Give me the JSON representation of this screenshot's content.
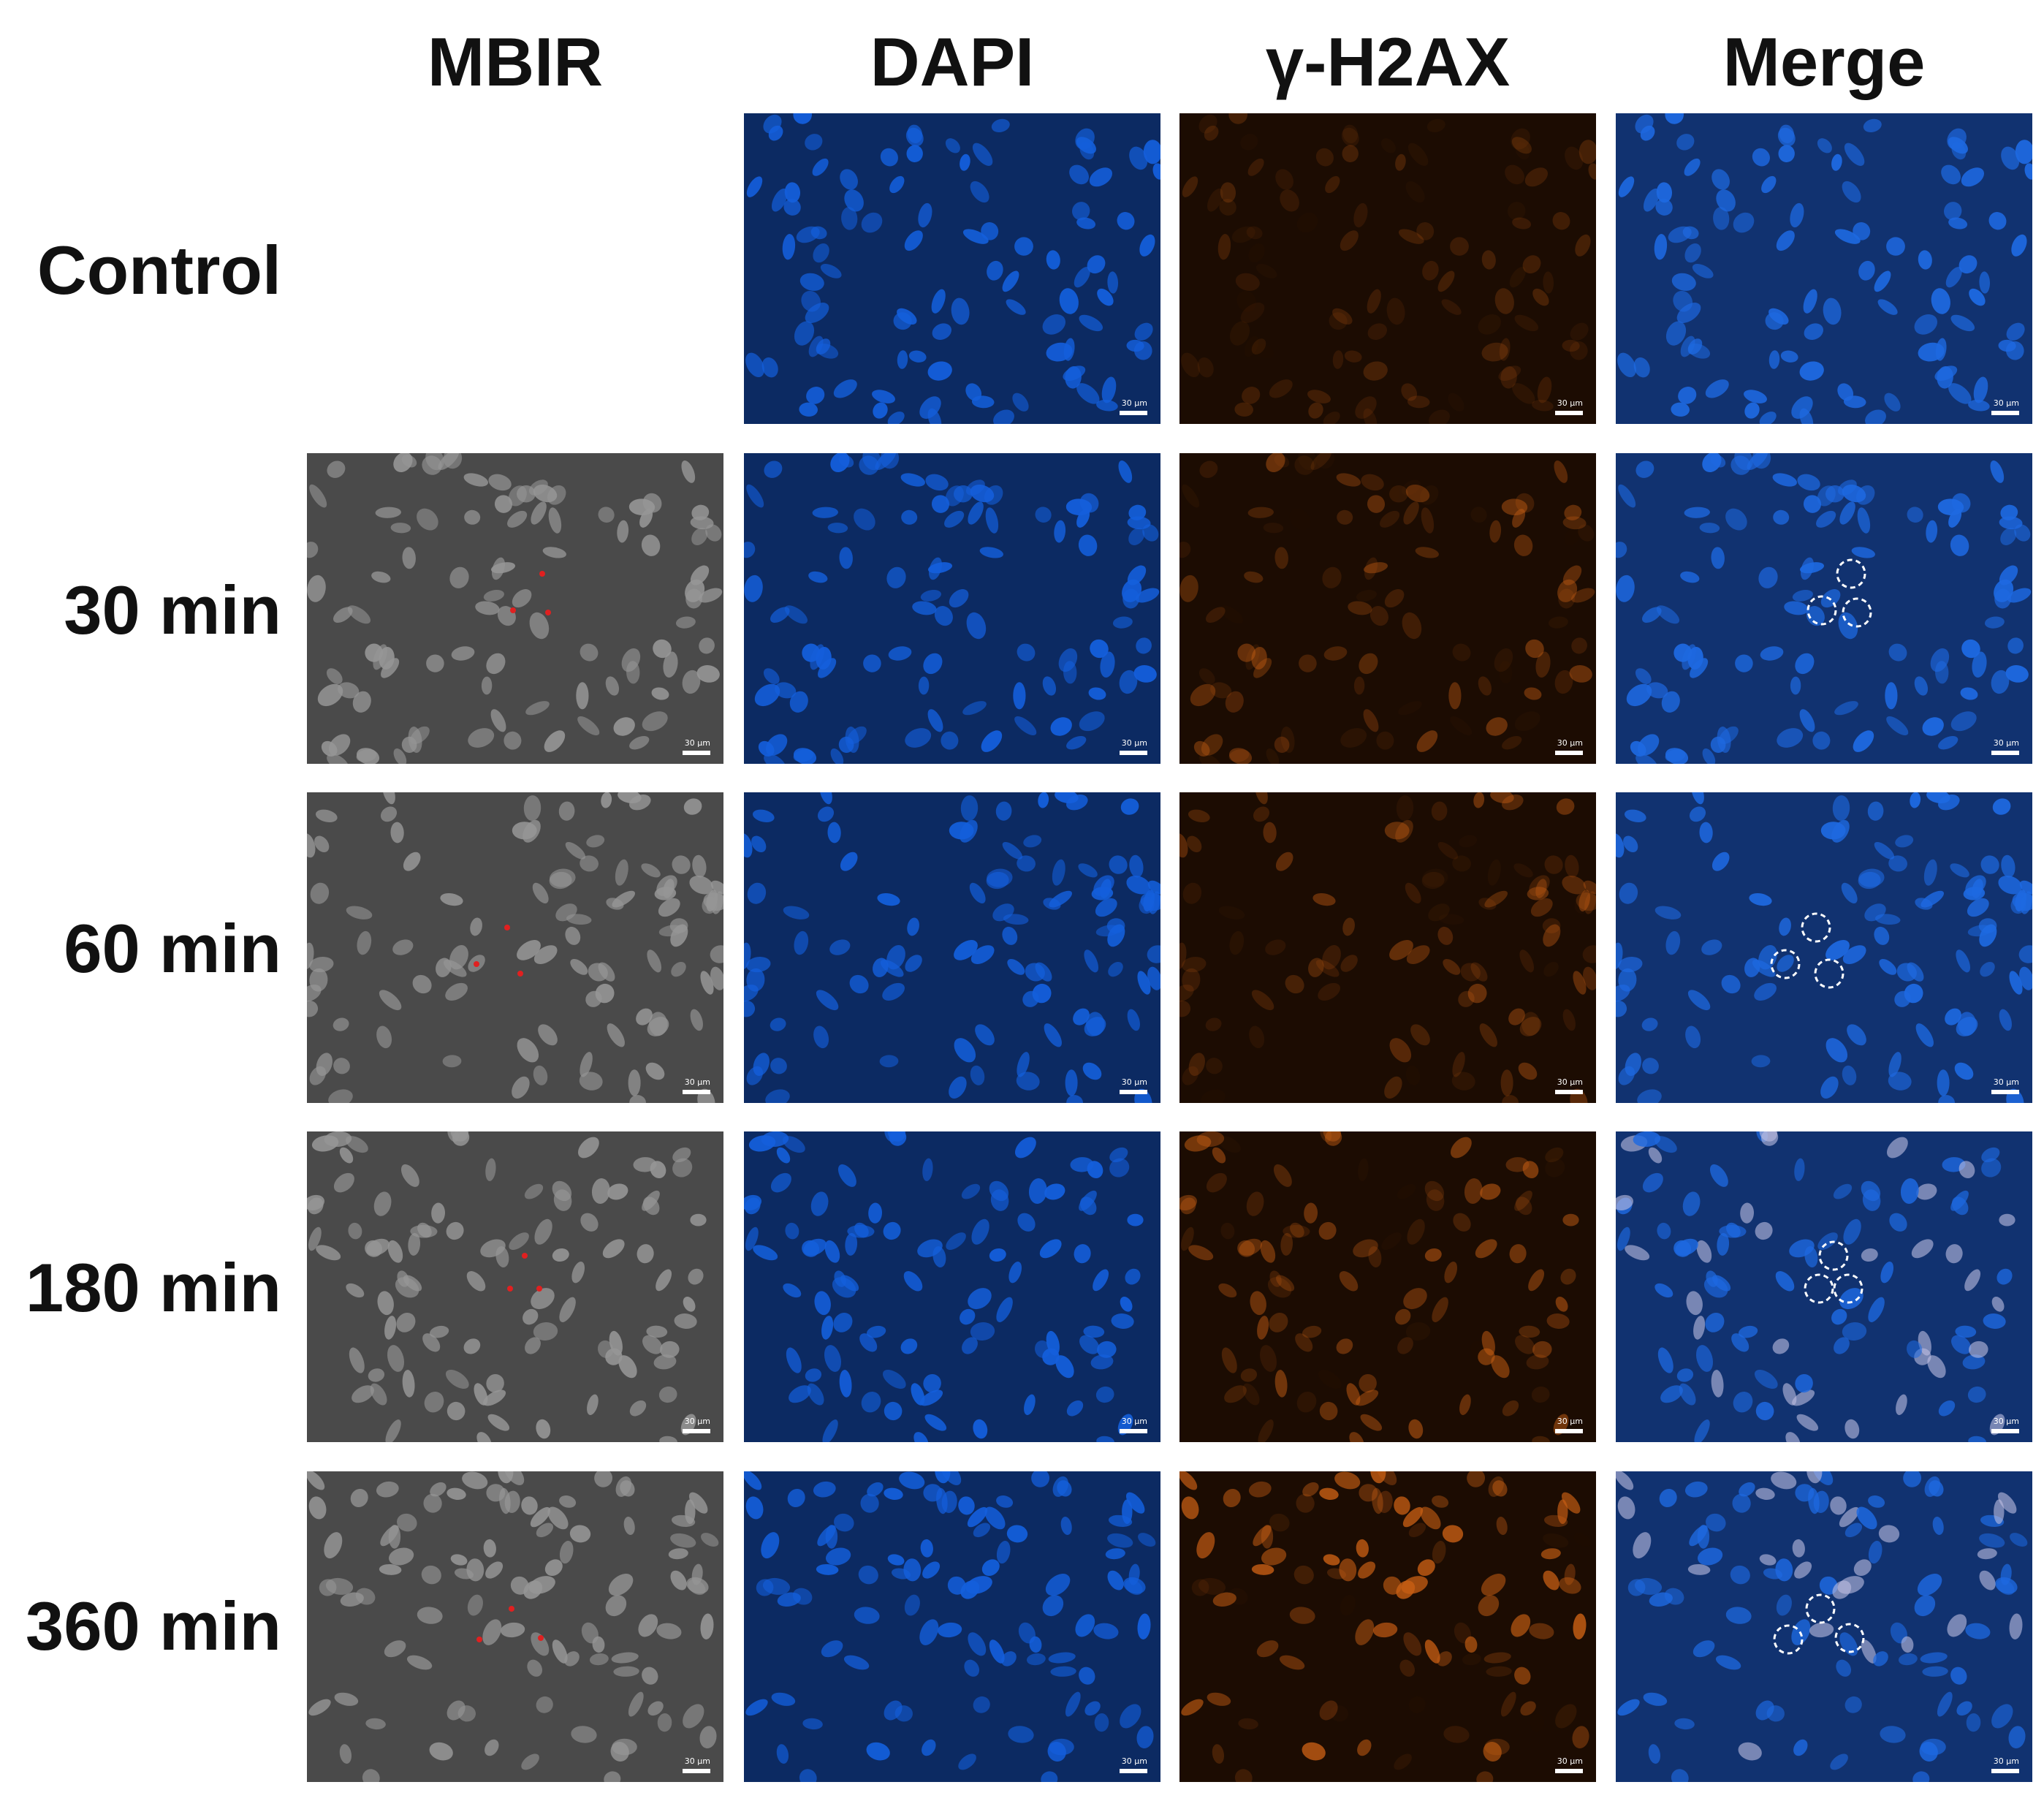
{
  "columns": [
    "MBIR",
    "DAPI",
    "γ-H2AX",
    "Merge"
  ],
  "rows": [
    "Control",
    "30 min",
    "60 min",
    "180 min",
    "360 min"
  ],
  "scale_bar_label": "30 μm",
  "colors": {
    "mbir_background": "#4a4a4a",
    "dapi_background": "#0c2a62",
    "h2ax_background": "#1c0c02",
    "merge_background": "#113270",
    "irradiation_marker": "#e02020",
    "circle_marker": "#ffffff"
  }
}
